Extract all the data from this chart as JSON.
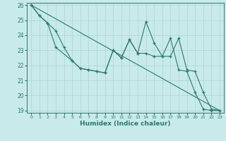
{
  "xlabel": "Humidex (Indice chaleur)",
  "background_color": "#c8eaeb",
  "grid_color": "#aed4d0",
  "line_color": "#2a7a6a",
  "xlim": [
    -0.5,
    23.5
  ],
  "ylim": [
    18.85,
    26.15
  ],
  "yticks": [
    19,
    20,
    21,
    22,
    23,
    24,
    25,
    26
  ],
  "xticks": [
    0,
    1,
    2,
    3,
    4,
    5,
    6,
    7,
    8,
    9,
    10,
    11,
    12,
    13,
    14,
    15,
    16,
    17,
    18,
    19,
    20,
    21,
    22,
    23
  ],
  "line1_x": [
    0,
    1,
    2,
    3,
    4,
    5,
    6,
    7,
    8,
    9,
    10,
    11,
    12,
    13,
    14,
    15,
    16,
    17,
    18,
    19,
    20,
    21,
    22,
    23
  ],
  "line1_y": [
    26.0,
    25.3,
    24.8,
    24.3,
    23.2,
    22.3,
    21.8,
    21.7,
    21.6,
    21.5,
    23.0,
    22.5,
    23.7,
    22.8,
    22.8,
    22.6,
    22.6,
    23.8,
    21.7,
    21.6,
    20.2,
    19.1,
    19.0,
    19.0
  ],
  "line2_x": [
    0,
    1,
    2,
    3,
    5,
    6,
    7,
    8,
    9,
    10,
    11,
    12,
    13,
    14,
    15,
    16,
    17,
    18,
    19,
    20,
    21,
    22,
    23
  ],
  "line2_y": [
    26.0,
    25.3,
    24.8,
    23.2,
    22.3,
    21.8,
    21.7,
    21.6,
    21.5,
    23.0,
    22.5,
    23.7,
    22.8,
    24.9,
    23.5,
    22.6,
    22.6,
    23.8,
    21.7,
    21.6,
    20.2,
    19.1,
    19.0
  ],
  "line3_x": [
    0,
    23
  ],
  "line3_y": [
    26.0,
    19.0
  ]
}
